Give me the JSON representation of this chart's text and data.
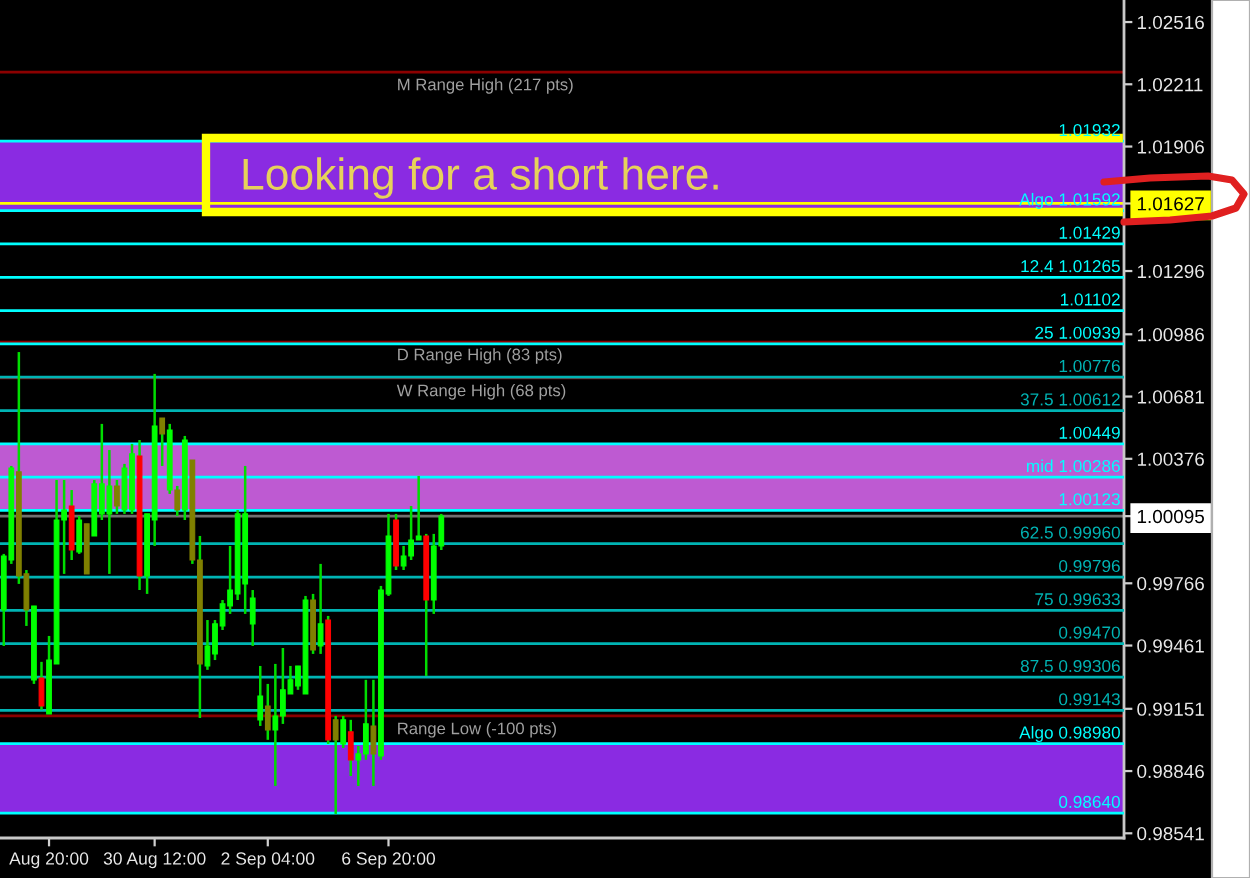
{
  "chart_data": {
    "type": "candlestick",
    "categories": [
      null,
      null,
      null,
      null,
      null,
      null,
      "Aug 20:00",
      null,
      null,
      null,
      null,
      null,
      null,
      null,
      null,
      null,
      null,
      null,
      null,
      null,
      "30 Aug 12:00",
      null,
      null,
      null,
      null,
      null,
      null,
      null,
      null,
      null,
      null,
      null,
      null,
      null,
      null,
      "2 Sep 04:00",
      null,
      null,
      null,
      null,
      null,
      null,
      null,
      null,
      null,
      null,
      null,
      null,
      null,
      null,
      null,
      "6 Sep 20:00",
      null,
      null,
      null,
      null,
      null,
      null,
      null,
      null,
      null,
      null,
      null,
      null,
      null,
      null,
      null,
      null,
      null,
      null,
      null,
      null,
      null,
      null,
      null,
      null,
      null,
      null,
      null,
      null,
      null,
      null,
      null,
      null,
      null,
      null,
      null,
      null,
      null,
      null,
      null,
      null,
      null,
      null,
      null,
      null,
      null,
      null,
      null,
      null,
      null,
      null,
      null,
      null,
      null,
      null,
      null,
      null,
      null,
      null,
      null,
      null,
      null,
      null,
      null,
      null,
      null,
      null,
      null,
      null,
      null,
      null,
      null,
      null,
      null,
      null,
      null,
      null,
      null,
      null,
      null,
      null,
      null,
      null,
      null,
      null,
      null,
      null,
      null,
      null,
      null,
      null,
      null,
      null,
      null,
      null,
      null,
      null,
      null
    ],
    "ohlc": [
      [
        0.99635,
        0.9991,
        0.99459,
        0.999
      ],
      [
        0.9988,
        1.00341,
        0.99861,
        1.00331
      ],
      [
        1.00312,
        1.00899,
        0.99763,
        0.99802
      ],
      [
        0.99812,
        0.99831,
        0.99557,
        0.99635
      ],
      [
        0.99293,
        0.99655,
        0.99273,
        0.99655
      ],
      [
        0.99302,
        0.99381,
        0.99146,
        0.99165
      ],
      [
        0.99126,
        0.99508,
        0.99126,
        0.9939
      ],
      [
        0.99371,
        1.00272,
        0.99371,
        1.00076
      ],
      [
        1.00076,
        1.00272,
        0.99812,
        1.00125
      ],
      [
        1.00145,
        1.00223,
        0.9988,
        0.99929
      ],
      [
        0.9992,
        1.00096,
        0.9991,
        1.00076
      ],
      [
        1.00057,
        1.00057,
        0.99812,
        0.99812
      ],
      [
        0.99998,
        1.00272,
        0.99998,
        1.00253
      ],
      [
        1.00106,
        1.00547,
        1.00076,
        1.00253
      ],
      [
        1.00106,
        1.00419,
        0.99812,
        1.00243
      ],
      [
        1.00243,
        1.00272,
        1.00106,
        1.00145
      ],
      [
        1.00125,
        1.00351,
        1.00106,
        1.00331
      ],
      [
        1.00125,
        1.00449,
        1.00106,
        1.004
      ],
      [
        1.0039,
        1.00468,
        0.99733,
        0.99802
      ],
      [
        0.99802,
        1.00106,
        0.99714,
        1.00106
      ],
      [
        1.00076,
        1.00792,
        0.99949,
        1.00537
      ],
      [
        1.00576,
        1.00576,
        1.00341,
        1.00498
      ],
      [
        1.00223,
        1.00547,
        1.00204,
        1.00517
      ],
      [
        1.00223,
        1.00243,
        1.00096,
        1.00125
      ],
      [
        1.00125,
        1.00488,
        1.00076,
        1.00468
      ],
      [
        1.0037,
        1.0037,
        0.99861,
        0.9988
      ],
      [
        0.9988,
        0.99998,
        0.99106,
        0.99371
      ],
      [
        0.99361,
        0.99586,
        0.99342,
        0.99459
      ],
      [
        0.9942,
        0.99586,
        0.9939,
        0.99567
      ],
      [
        0.99557,
        0.99684,
        0.99537,
        0.99665
      ],
      [
        0.99655,
        0.99949,
        0.99616,
        0.99733
      ],
      [
        0.99714,
        1.00125,
        0.99684,
        1.00106
      ],
      [
        0.99763,
        1.00341,
        0.99616,
        1.00106
      ],
      [
        0.99567,
        0.99733,
        0.99459,
        0.99694
      ],
      [
        0.99097,
        0.99361,
        0.99067,
        0.99214
      ],
      [
        0.99165,
        0.99273,
        0.98999,
        0.99048
      ],
      [
        0.99048,
        0.99371,
        0.98773,
        0.99116
      ],
      [
        0.99116,
        0.99449,
        0.99077,
        0.99244
      ],
      [
        0.99224,
        0.99361,
        0.99224,
        0.99293
      ],
      [
        0.99263,
        0.99361,
        0.99244,
        0.99361
      ],
      [
        0.99224,
        0.99704,
        0.99224,
        0.99684
      ],
      [
        0.99684,
        0.99714,
        0.9942,
        0.99439
      ],
      [
        0.99459,
        0.99861,
        0.9942,
        0.99567
      ],
      [
        0.99586,
        0.99606,
        0.98979,
        0.98999
      ],
      [
        0.99097,
        0.99116,
        0.98636,
        0.98999
      ],
      [
        0.98979,
        0.99116,
        0.98959,
        0.99097
      ],
      [
        0.99038,
        0.99097,
        0.98822,
        0.98901
      ],
      [
        0.98901,
        0.98969,
        0.98773,
        0.9893
      ],
      [
        0.9893,
        0.99293,
        0.98901,
        0.99077
      ],
      [
        0.99067,
        0.99293,
        0.98773,
        0.9893
      ],
      [
        0.9892,
        0.99753,
        0.98901,
        0.99733
      ],
      [
        0.99714,
        1.00106,
        0.99704,
        0.99998
      ],
      [
        1.00076,
        1.00106,
        0.99831,
        0.99851
      ],
      [
        0.99851,
        0.99949,
        0.99831,
        0.999
      ],
      [
        0.999,
        1.00145,
        0.9988,
        0.99978
      ],
      [
        0.99978,
        1.00292,
        0.99978,
        0.99998
      ],
      [
        0.99998,
        1.00008,
        0.99312,
        0.99684
      ],
      [
        0.99684,
        1.00008,
        0.99616,
        0.99949
      ],
      [
        0.99949,
        1.00106,
        0.99929,
        1.00095
      ],
      null,
      null,
      null,
      null,
      null,
      null,
      null,
      null,
      null,
      null,
      null,
      null,
      null,
      null,
      null,
      null,
      null,
      null,
      null,
      null,
      null,
      null,
      null,
      null,
      null,
      null,
      null,
      null,
      null,
      null,
      null,
      null,
      null,
      null,
      null,
      null,
      null,
      null,
      null,
      null,
      null,
      null,
      null,
      null,
      null,
      null,
      null,
      null,
      null,
      null,
      null,
      null,
      null,
      null,
      null,
      null,
      null,
      null,
      null,
      null,
      null,
      null,
      null,
      null,
      null,
      null,
      null,
      null,
      null,
      null,
      null,
      null,
      null,
      null,
      null,
      null,
      null,
      null,
      null,
      null,
      null,
      null,
      null,
      null,
      null,
      null,
      null,
      null,
      null,
      null
    ],
    "colors": [
      "#00ff00",
      "#00ff00",
      "#808000",
      "#808000",
      "#00ff00",
      "#ff0000",
      "#00ff00",
      "#00ff00",
      "#00ff00",
      "#ff0000",
      "#00ff00",
      "#808000",
      "#00ff00",
      "#00ff00",
      "#00ff00",
      "#808000",
      "#00ff00",
      "#00ff00",
      "#ff0000",
      "#00ff00",
      "#00ff00",
      "#808000",
      "#00ff00",
      "#808000",
      "#00ff00",
      "#808000",
      "#808000",
      "#00ff00",
      "#00ff00",
      "#00ff00",
      "#00ff00",
      "#00ff00",
      "#00ff00",
      "#00ff00",
      "#00ff00",
      "#808000",
      "#00ff00",
      "#00ff00",
      "#00ff00",
      "#00ff00",
      "#00ff00",
      "#808000",
      "#00ff00",
      "#ff0000",
      "#808000",
      "#00ff00",
      "#ff0000",
      "#00ff00",
      "#00ff00",
      "#808000",
      "#00ff00",
      "#00ff00",
      "#ff0000",
      "#00ff00",
      "#00ff00",
      "#00ff00",
      "#ff0000",
      "#00ff00",
      "#00ff00",
      null,
      null,
      null,
      null,
      null,
      null,
      null,
      null,
      null,
      null,
      null,
      null,
      null,
      null,
      null,
      null,
      null,
      null,
      null,
      null,
      null,
      null,
      null,
      null,
      null,
      null,
      null,
      null,
      null,
      null,
      null,
      null,
      null,
      null,
      null,
      null,
      null,
      null,
      null,
      null,
      null,
      null,
      null,
      null,
      null,
      null,
      null,
      null,
      null,
      null,
      null,
      null,
      null,
      null,
      null,
      null,
      null,
      null,
      null,
      null,
      null,
      null,
      null,
      null,
      null,
      null,
      null,
      null,
      null,
      null,
      null,
      null,
      null,
      null,
      null,
      null,
      null,
      null,
      null,
      null,
      null,
      null,
      null,
      null,
      null,
      null,
      null,
      null,
      null,
      null
    ],
    "color": "#00dd00",
    "ylim": [
      0.98518,
      1.02624
    ],
    "yticks": [
      1.02516,
      1.02211,
      1.01906,
      1.01627,
      1.01296,
      1.00986,
      1.00681,
      1.00376,
      1.00095,
      0.99766,
      0.99461,
      0.99151,
      0.98846,
      0.98541
    ],
    "bands": [
      {
        "axis": "y",
        "from": 1.01592,
        "to": 1.01932,
        "color": "#8a2be2"
      },
      {
        "axis": "y",
        "from": 1.00123,
        "to": 1.00449,
        "color": "#be5ad2"
      },
      {
        "axis": "y",
        "from": 0.9864,
        "to": 0.9898,
        "color": "#8a2be2"
      }
    ],
    "ref_lines": [
      {
        "axis": "y",
        "value": 1.02271,
        "color": "#8b0000"
      },
      {
        "axis": "y",
        "value": 1.00948,
        "color": "#8b0000"
      },
      {
        "axis": "y",
        "value": 1.00772,
        "color": "#8b0000"
      },
      {
        "axis": "y",
        "value": 0.99116,
        "color": "#8b0000"
      },
      {
        "axis": "y",
        "value": 1.01932,
        "label": "1.01932",
        "color": "#00ffff"
      },
      {
        "axis": "y",
        "value": 1.01592,
        "label": "Algo 1.01592",
        "color": "#00ffff"
      },
      {
        "axis": "y",
        "value": 1.01429,
        "label": "1.01429",
        "color": "#00ffff"
      },
      {
        "axis": "y",
        "value": 1.01265,
        "label": "12.4 1.01265",
        "color": "#00ffff"
      },
      {
        "axis": "y",
        "value": 1.01102,
        "label": "1.01102",
        "color": "#00ffff"
      },
      {
        "axis": "y",
        "value": 1.00939,
        "label": "25 1.00939",
        "color": "#00ffff"
      },
      {
        "axis": "y",
        "value": 1.00776,
        "label": "1.00776",
        "color": "#00b4b4"
      },
      {
        "axis": "y",
        "value": 1.00612,
        "label": "37.5 1.00612",
        "color": "#00b4b4"
      },
      {
        "axis": "y",
        "value": 1.00449,
        "label": "1.00449",
        "color": "#00ffff"
      },
      {
        "axis": "y",
        "value": 1.00286,
        "label": "mid 1.00286",
        "color": "#00ffff"
      },
      {
        "axis": "y",
        "value": 1.00123,
        "label": "1.00123",
        "color": "#00ffff"
      },
      {
        "axis": "y",
        "value": 0.9996,
        "label": "62.5 0.99960",
        "color": "#00b4b4"
      },
      {
        "axis": "y",
        "value": 0.99796,
        "label": "0.99796",
        "color": "#00b4b4"
      },
      {
        "axis": "y",
        "value": 0.99633,
        "label": "75 0.99633",
        "color": "#00b4b4"
      },
      {
        "axis": "y",
        "value": 0.9947,
        "label": "0.99470",
        "color": "#00b4b4"
      },
      {
        "axis": "y",
        "value": 0.99306,
        "label": "87.5 0.99306",
        "color": "#00b4b4"
      },
      {
        "axis": "y",
        "value": 0.99143,
        "label": "0.99143",
        "color": "#00b4b4"
      },
      {
        "axis": "y",
        "value": 0.9898,
        "label": "Algo 0.98980",
        "color": "#00ffff"
      },
      {
        "axis": "y",
        "value": 0.9864,
        "label": "0.98640",
        "color": "#00ffff"
      },
      {
        "axis": "y",
        "value": 1.01627,
        "color": "#ffff00"
      },
      {
        "axis": "y",
        "value": 1.00095,
        "color": "#707070"
      }
    ],
    "annotations": [
      "Looking for a short here.",
      {
        "text": "M Range High (217 pts)",
        "y": 1.02271
      },
      {
        "text": "D Range High (83 pts)",
        "y": 1.00948
      },
      {
        "text": "W Range High (68 pts)",
        "y": 1.00772
      },
      {
        "text": "Range Low (-100 pts)",
        "y": 0.99116
      }
    ]
  }
}
